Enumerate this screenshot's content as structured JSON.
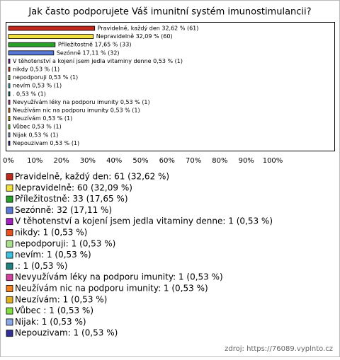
{
  "chart_data": {
    "type": "bar",
    "orientation": "horizontal",
    "title": "Jak často podporujete Váš imunitní systém imunostimulancii?",
    "categories": [
      "Pravidelně, každý den",
      "Nepravidelně",
      "Příležitostně",
      "Sezónně",
      "V těhotenství a kojení jsem jedla vitaminy denne",
      "nikdy",
      "nepodporuji",
      "nevím",
      ".",
      "Nevyužívám léky na podporu imunity",
      "Neužívám nic na podporu imunity",
      "Neuzívám",
      "Vůbec",
      "Nijak",
      "Nepouzivam"
    ],
    "values": [
      32.62,
      32.09,
      17.65,
      17.11,
      0.53,
      0.53,
      0.53,
      0.53,
      0.53,
      0.53,
      0.53,
      0.53,
      0.53,
      0.53,
      0.53
    ],
    "value_labels": [
      "Pravidelně, každý den 32,62 % (61)",
      "Nepravidelně 32,09 % (60)",
      "Příležitostně 17,65 % (33)",
      "Sezónně 17,11 % (32)",
      "V těhotenství a kojení jsem jedla vitaminy denne 0,53 % (1)",
      "nikdy 0,53 % (1)",
      "nepodporuji 0,53 % (1)",
      "nevím 0,53 % (1)",
      ". 0,53 % (1)",
      "Nevyužívám léky na podporu imunity 0,53 % (1)",
      "Neužívám nic na podporu imunity 0,53 % (1)",
      "Neuzívám 0,53 % (1)",
      "Vůbec  0,53 % (1)",
      "Nijak 0,53 % (1)",
      "Nepouzivam 0,53 % (1)"
    ],
    "legend_labels": [
      "Pravidelně, každý den: 61 (32,62 %)",
      "Nepravidelně: 60 (32,09 %)",
      "Příležitostně: 33 (17,65 %)",
      "Sezónně: 32 (17,11 %)",
      "V těhotenství a kojení jsem jedla vitaminy denne: 1 (0,53 %)",
      "nikdy: 1 (0,53 %)",
      "nepodporuji: 1 (0,53 %)",
      "nevím: 1 (0,53 %)",
      ".: 1 (0,53 %)",
      "Nevyužívám léky na podporu imunity: 1 (0,53 %)",
      "Neužívám nic na podporu imunity: 1 (0,53 %)",
      "Neuzívám: 1 (0,53 %)",
      "Vůbec : 1 (0,53 %)",
      "Nijak: 1 (0,53 %)",
      "Nepouzivam: 1 (0,53 %)"
    ],
    "colors": [
      "#c0281c",
      "#f0e040",
      "#28a028",
      "#5878d8",
      "#a020c0",
      "#e85020",
      "#a8e088",
      "#40c0e0",
      "#208080",
      "#d040a0",
      "#f08020",
      "#e0b020",
      "#80e040",
      "#88a8e8",
      "#303098"
    ],
    "xlim": [
      0,
      100
    ],
    "xticks": [
      {
        "value": 0,
        "label": "0%"
      },
      {
        "value": 10,
        "label": "10%"
      },
      {
        "value": 20,
        "label": "20%"
      },
      {
        "value": 30,
        "label": "30%"
      },
      {
        "value": 40,
        "label": "40%"
      },
      {
        "value": 50,
        "label": "50%"
      },
      {
        "value": 60,
        "label": "60%"
      },
      {
        "value": 70,
        "label": "70%"
      },
      {
        "value": 80,
        "label": "80%"
      },
      {
        "value": 90,
        "label": "90%"
      },
      {
        "value": 100,
        "label": "100%"
      }
    ],
    "grid": false,
    "source": "zdroj: https://76089.vyplnto.cz"
  }
}
